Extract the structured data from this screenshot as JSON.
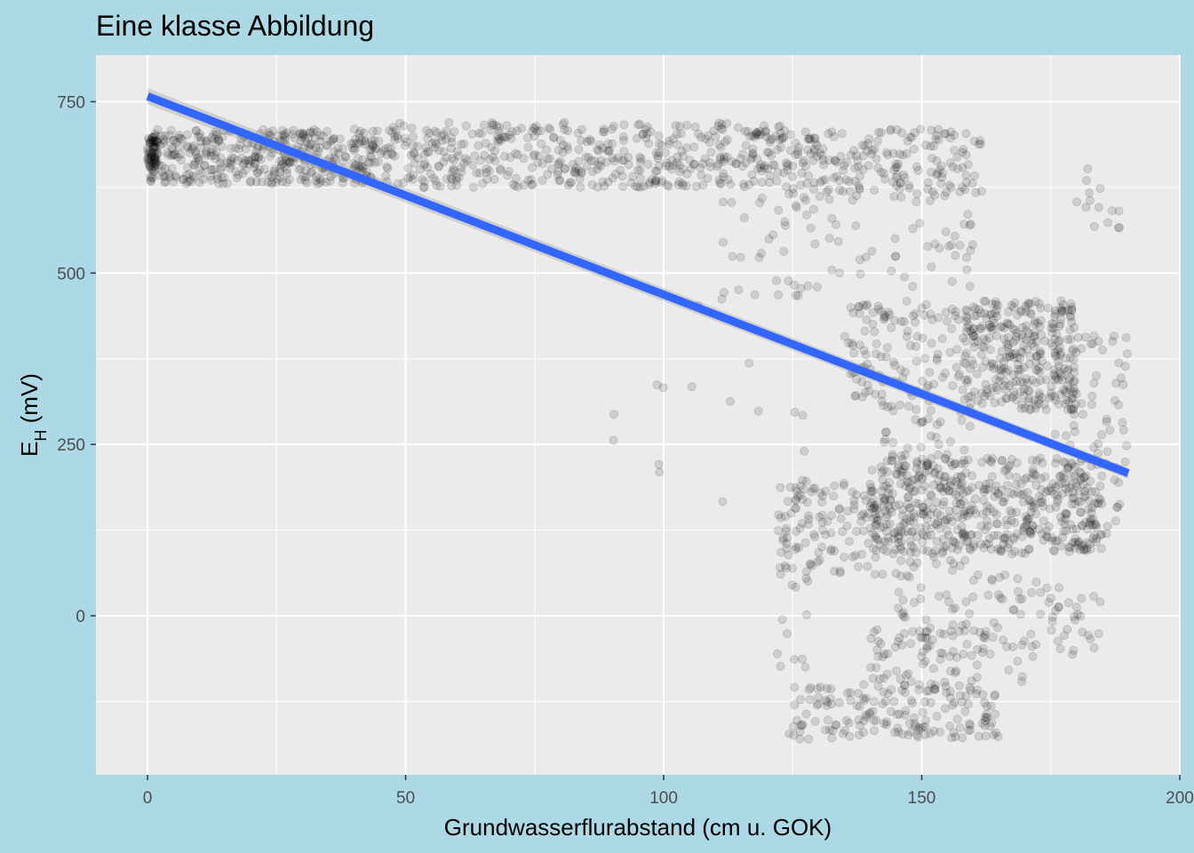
{
  "chart_data": {
    "type": "scatter",
    "title": "Eine klasse Abbildung",
    "xlabel": "Grundwasserflurabstand (cm u. GOK)",
    "ylabel_main": "E",
    "ylabel_sub": "H",
    "ylabel_suffix": " (mV)",
    "xlim": [
      -10,
      200
    ],
    "ylim": [
      -232,
      818
    ],
    "x_ticks": [
      0,
      50,
      100,
      150,
      200
    ],
    "y_ticks": [
      0,
      250,
      500,
      750
    ],
    "x_tick_labels": [
      "0",
      "50",
      "100",
      "150",
      "200"
    ],
    "y_tick_labels": [
      "0",
      "250",
      "500",
      "750"
    ],
    "x_minor_ticks": [
      25,
      75,
      125,
      175
    ],
    "y_minor_ticks": [
      -125,
      125,
      375,
      625
    ],
    "grid": true,
    "colors": {
      "background": "#add8e6",
      "panel": "#ebebeb",
      "grid": "#ffffff",
      "points": "#000000",
      "trend_line": "#3366ff",
      "confidence_band": "#999999"
    },
    "point_alpha": 0.12,
    "trend_line": {
      "x": [
        0,
        190
      ],
      "y": [
        758,
        208
      ]
    },
    "clusters": [
      {
        "x": [
          0,
          2
        ],
        "y": [
          650,
          700
        ],
        "n": 60
      },
      {
        "x": [
          0,
          45
        ],
        "y": [
          630,
          710
        ],
        "n": 420
      },
      {
        "x": [
          45,
          125
        ],
        "y": [
          625,
          720
        ],
        "n": 480
      },
      {
        "x": [
          125,
          162
        ],
        "y": [
          610,
          710
        ],
        "n": 160
      },
      {
        "x": [
          110,
          130
        ],
        "y": [
          460,
          640
        ],
        "n": 40
      },
      {
        "x": [
          130,
          160
        ],
        "y": [
          480,
          660
        ],
        "n": 70
      },
      {
        "x": [
          158,
          180
        ],
        "y": [
          300,
          460
        ],
        "n": 320
      },
      {
        "x": [
          135,
          158
        ],
        "y": [
          300,
          460
        ],
        "n": 120
      },
      {
        "x": [
          140,
          185
        ],
        "y": [
          90,
          230
        ],
        "n": 500
      },
      {
        "x": [
          122,
          142
        ],
        "y": [
          60,
          200
        ],
        "n": 110
      },
      {
        "x": [
          142,
          160
        ],
        "y": [
          60,
          300
        ],
        "n": 90
      },
      {
        "x": [
          175,
          190
        ],
        "y": [
          100,
          420
        ],
        "n": 90
      },
      {
        "x": [
          145,
          185
        ],
        "y": [
          -60,
          60
        ],
        "n": 110
      },
      {
        "x": [
          125,
          165
        ],
        "y": [
          -180,
          -100
        ],
        "n": 170
      },
      {
        "x": [
          140,
          170
        ],
        "y": [
          -100,
          -20
        ],
        "n": 60
      },
      {
        "x": [
          122,
          128
        ],
        "y": [
          -180,
          300
        ],
        "n": 25
      },
      {
        "x": [
          90,
          120
        ],
        "y": [
          140,
          500
        ],
        "n": 12
      },
      {
        "x": [
          180,
          190
        ],
        "y": [
          560,
          660
        ],
        "n": 14
      }
    ]
  }
}
